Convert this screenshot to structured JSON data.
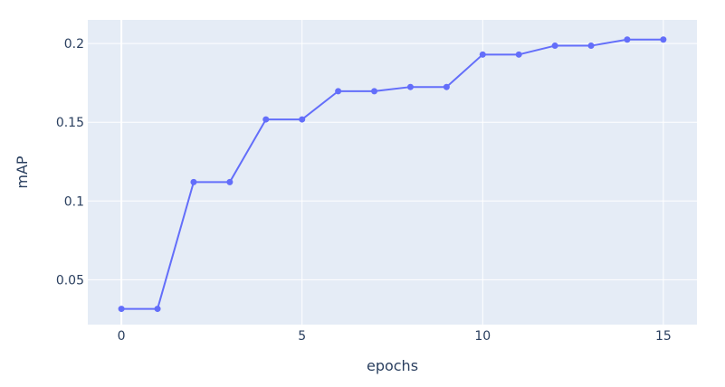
{
  "chart_data": {
    "type": "line",
    "title": "",
    "xlabel": "epochs",
    "ylabel": "mAP",
    "x": [
      0,
      1,
      2,
      3,
      4,
      5,
      6,
      7,
      8,
      9,
      10,
      11,
      12,
      13,
      14,
      15
    ],
    "series": [
      {
        "values": [
          0.0315,
          0.0315,
          0.112,
          0.112,
          0.1518,
          0.1518,
          0.1697,
          0.1697,
          0.1724,
          0.1724,
          0.193,
          0.193,
          0.1986,
          0.1986,
          0.2025,
          0.2025
        ],
        "color": "#636efa"
      }
    ],
    "xlim": [
      -0.93,
      15.93
    ],
    "ylim": [
      0.0215,
      0.215
    ],
    "xticks": [
      0,
      5,
      10,
      15
    ],
    "xtick_labels": [
      "0",
      "5",
      "10",
      "15"
    ],
    "yticks": [
      0.05,
      0.1,
      0.15,
      0.2
    ],
    "ytick_labels": [
      "0.05",
      "0.1",
      "0.15",
      "0.2"
    ],
    "grid": true,
    "plot_background": "#e5ecf6",
    "grid_color": "#ffffff"
  }
}
